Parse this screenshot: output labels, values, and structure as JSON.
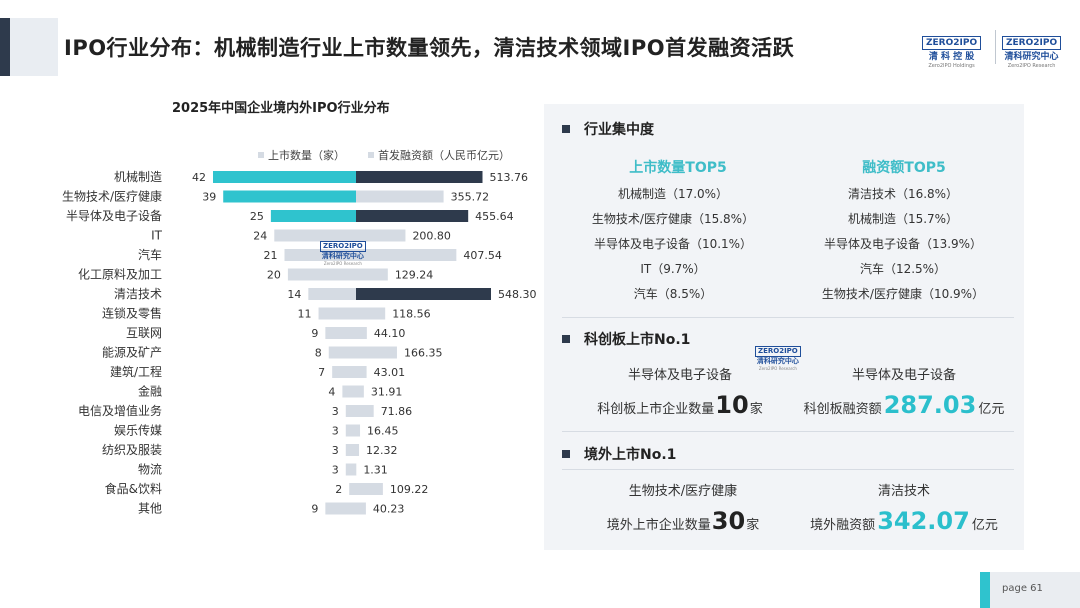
{
  "header": {
    "title": "IPO行业分布：机械制造行业上市数量领先，清洁技术领域IPO首发融资活跃",
    "logo_left": {
      "box": "ZERO2IPO",
      "cn": "清 科 控 股",
      "en": "Zero2IPO Holdings"
    },
    "logo_right": {
      "box": "ZERO2IPO",
      "cn": "清科研究中心",
      "en": "Zero2IPO Research"
    }
  },
  "watermark": {
    "box": "ZERO2IPO",
    "cn": "清科研究中心",
    "en": "Zero2IPO Research"
  },
  "chart_data": {
    "type": "bar",
    "title": "2025年中国企业境内外IPO行业分布",
    "categories": [
      "机械制造",
      "生物技术/医疗健康",
      "半导体及电子设备",
      "IT",
      "汽车",
      "化工原料及加工",
      "清洁技术",
      "连锁及零售",
      "互联网",
      "能源及矿产",
      "建筑/工程",
      "金融",
      "电信及增值业务",
      "娱乐传媒",
      "纺织及服装",
      "物流",
      "食品&饮料",
      "其他"
    ],
    "series": [
      {
        "name": "上市数量（家）",
        "values": [
          42,
          39,
          25,
          24,
          21,
          20,
          14,
          11,
          9,
          8,
          7,
          4,
          3,
          3,
          3,
          3,
          2,
          9
        ]
      },
      {
        "name": "首发融资额（人民币亿元）",
        "values": [
          513.76,
          355.72,
          455.64,
          200.8,
          407.54,
          129.24,
          548.3,
          118.56,
          44.1,
          166.35,
          43.01,
          31.91,
          71.86,
          16.45,
          12.32,
          1.31,
          109.22,
          40.23
        ]
      }
    ],
    "value_labels": {
      "count": [
        "42",
        "39",
        "25",
        "24",
        "21",
        "20",
        "14",
        "11",
        "9",
        "8",
        "7",
        "4",
        "3",
        "3",
        "3",
        "3",
        "2",
        "9"
      ],
      "amount": [
        "513.76",
        "355.72",
        "455.64",
        "200.80",
        "407.54",
        "129.24",
        "548.30",
        "118.56",
        "44.10",
        "166.35",
        "43.01",
        "31.91",
        "71.86",
        "16.45",
        "12.32",
        "1.31",
        "109.22",
        "40.23"
      ]
    },
    "highlight_count_top3": [
      "机械制造",
      "生物技术/医疗健康",
      "半导体及电子设备"
    ],
    "highlight_amount_top3": [
      "清洁技术",
      "机械制造",
      "半导体及电子设备"
    ],
    "layout": "diverging horizontal bars, count to the left and amount to the right of a shared center axis",
    "colors": {
      "count_highlight": "#2fc3ce",
      "amount_highlight": "#2e3a4c",
      "default_bar": "#d5dbe3"
    }
  },
  "legend": {
    "count_label": "上市数量（家）",
    "amount_label": "首发融资额（人民币亿元）"
  },
  "concentration": {
    "heading": "行业集中度",
    "count_top5_title": "上市数量TOP5",
    "amount_top5_title": "融资额TOP5",
    "count_top5": [
      "机械制造（17.0%）",
      "生物技术/医疗健康（15.8%）",
      "半导体及电子设备（10.1%）",
      "IT（9.7%）",
      "汽车（8.5%）"
    ],
    "amount_top5": [
      "清洁技术（16.8%）",
      "机械制造（15.7%）",
      "半导体及电子设备（13.9%）",
      "汽车（12.5%）",
      "生物技术/医疗健康（10.9%）"
    ]
  },
  "star_market": {
    "heading": "科创板上市No.1",
    "count_industry": "半导体及电子设备",
    "amount_industry": "半导体及电子设备",
    "count_prefix": "科创板上市企业数量",
    "count_value": "10",
    "count_unit": "家",
    "amount_prefix": "科创板融资额",
    "amount_value": "287.03",
    "amount_unit": "亿元"
  },
  "overseas": {
    "heading": "境外上市No.1",
    "count_industry": "生物技术/医疗健康",
    "amount_industry": "清洁技术",
    "count_prefix": "境外上市企业数量",
    "count_value": "30",
    "count_unit": "家",
    "amount_prefix": "境外融资额",
    "amount_value": "342.07",
    "amount_unit": "亿元"
  },
  "footer": {
    "page_label": "page  61"
  }
}
